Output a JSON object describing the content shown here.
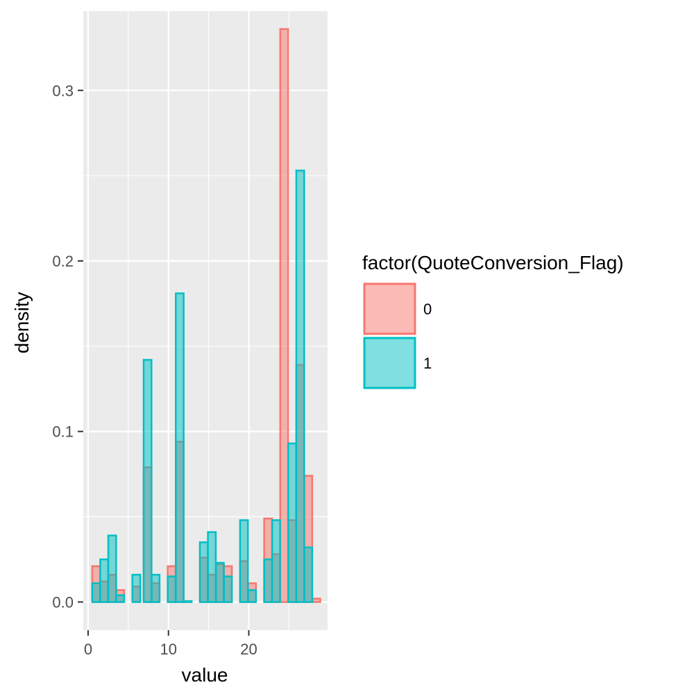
{
  "chart_data": {
    "type": "bar",
    "subtype": "overlaid-histogram",
    "xlabel": "value",
    "ylabel": "density",
    "xlim": [
      -0.6,
      29.8
    ],
    "ylim": [
      -0.0165,
      0.3465
    ],
    "x_ticks": [
      0,
      10,
      20
    ],
    "x_tick_labels": [
      "0",
      "10",
      "20"
    ],
    "y_ticks": [
      0.0,
      0.1,
      0.2,
      0.3
    ],
    "y_tick_labels": [
      "0.0",
      "0.1",
      "0.2",
      "0.3"
    ],
    "x_minor_breaks": [
      5,
      15,
      25
    ],
    "y_minor_breaks": [
      0.05,
      0.15,
      0.25
    ],
    "grid": true,
    "panel_background": "#ebebeb",
    "bin_width": 0.98,
    "legend": {
      "title": "factor(QuoteConversion_Flag)",
      "position": "right"
    },
    "series": [
      {
        "name": "0",
        "fill": "#f8766d",
        "stroke": "#f8766d",
        "points": [
          [
            1,
            0.021
          ],
          [
            2,
            0.012
          ],
          [
            3,
            0.016
          ],
          [
            4,
            0.007
          ],
          [
            6,
            0.009
          ],
          [
            7.4,
            0.079
          ],
          [
            8.4,
            0.011
          ],
          [
            10.4,
            0.021
          ],
          [
            11.4,
            0.094
          ],
          [
            12.4,
            0.0005
          ],
          [
            14.4,
            0.026
          ],
          [
            15.4,
            0.016
          ],
          [
            16.4,
            0.022
          ],
          [
            17.4,
            0.021
          ],
          [
            19.4,
            0.024
          ],
          [
            20.4,
            0.011
          ],
          [
            22.4,
            0.049
          ],
          [
            23.4,
            0.028
          ],
          [
            24.4,
            0.336
          ],
          [
            25.4,
            0.048
          ],
          [
            26.4,
            0.139
          ],
          [
            27.4,
            0.074
          ],
          [
            28.4,
            0.002
          ]
        ]
      },
      {
        "name": "1",
        "fill": "#00bfc4",
        "stroke": "#00bfc4",
        "points": [
          [
            1,
            0.011
          ],
          [
            2,
            0.025
          ],
          [
            3,
            0.039
          ],
          [
            4,
            0.004
          ],
          [
            6,
            0.016
          ],
          [
            7.4,
            0.142
          ],
          [
            8.4,
            0.016
          ],
          [
            10.4,
            0.015
          ],
          [
            11.4,
            0.181
          ],
          [
            12.4,
            0.0005
          ],
          [
            14.4,
            0.035
          ],
          [
            15.4,
            0.041
          ],
          [
            16.4,
            0.023
          ],
          [
            17.4,
            0.015
          ],
          [
            19.4,
            0.048
          ],
          [
            20.4,
            0.007
          ],
          [
            22.4,
            0.025
          ],
          [
            23.4,
            0.048
          ],
          [
            24.4,
            0.0
          ],
          [
            25.4,
            0.093
          ],
          [
            26.4,
            0.253
          ],
          [
            27.4,
            0.032
          ],
          [
            28.4,
            0.0
          ]
        ]
      }
    ]
  }
}
